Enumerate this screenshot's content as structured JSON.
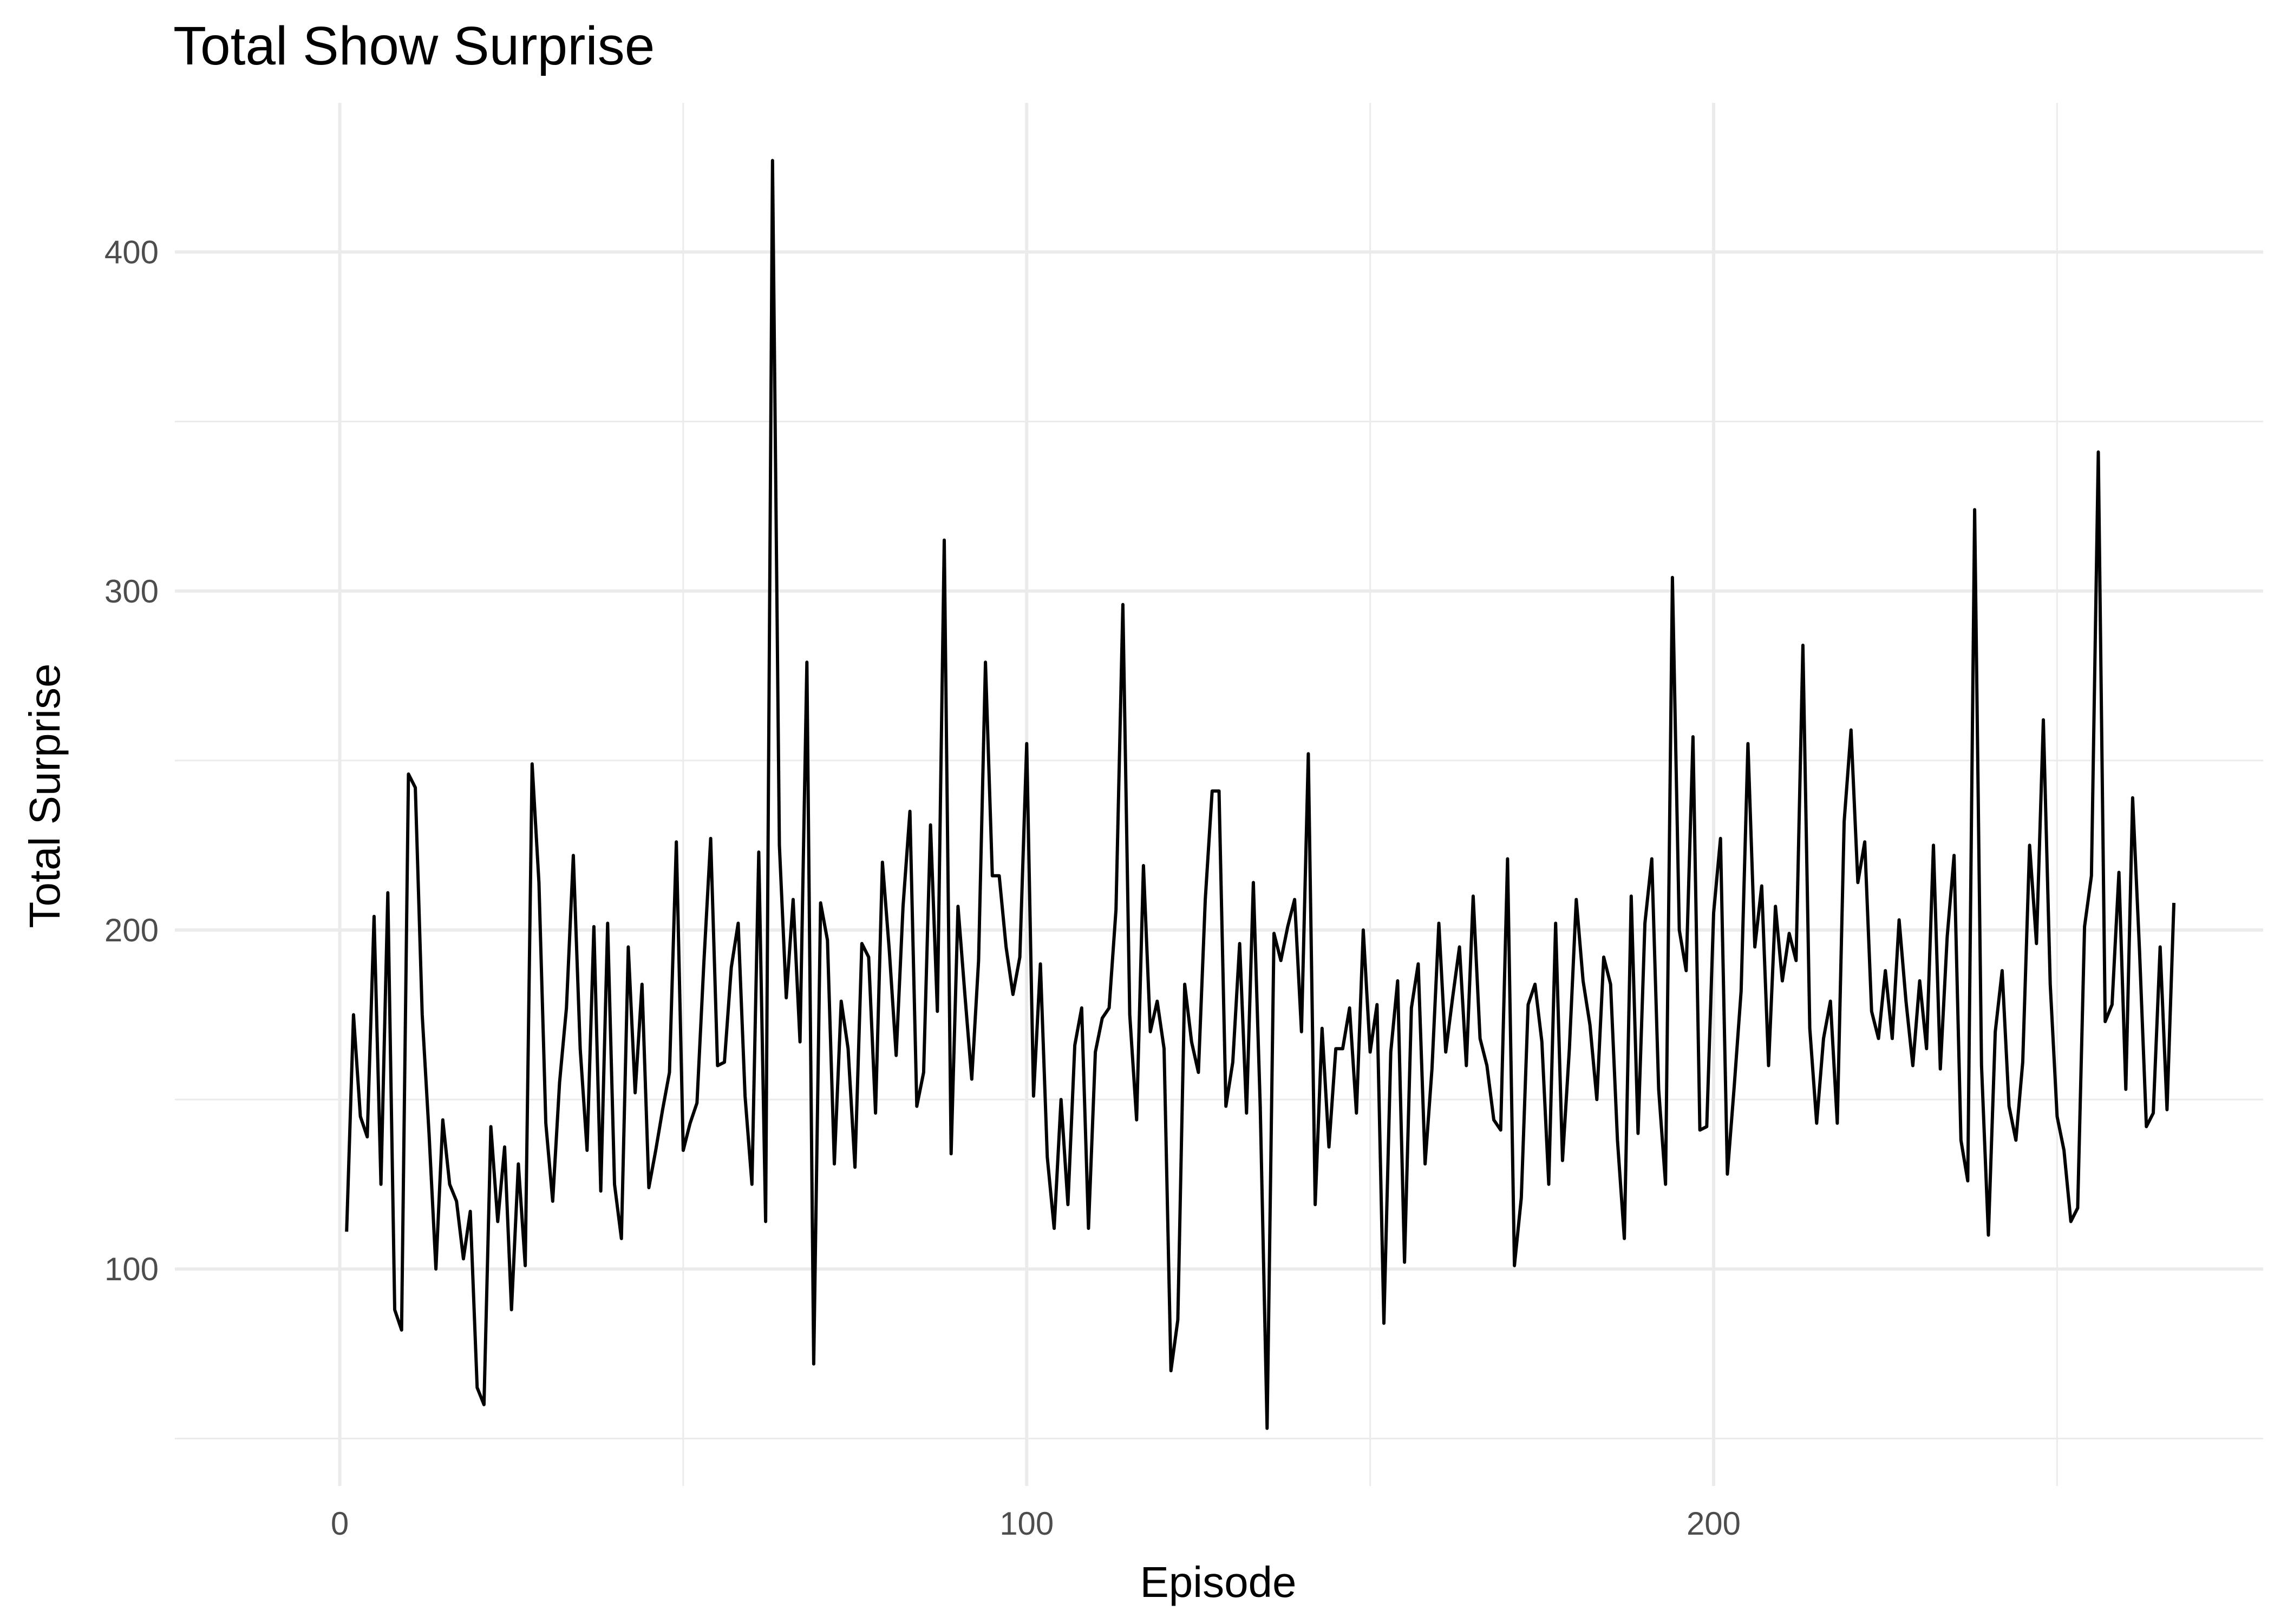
{
  "chart_data": {
    "type": "line",
    "title": "Total Show Surprise",
    "xlabel": "Episode",
    "ylabel": "Total Surprise",
    "xlim": [
      -24,
      280
    ],
    "ylim": [
      36,
      444
    ],
    "x_ticks": [
      0,
      100,
      200
    ],
    "x_tick_labels": [
      "0",
      "100",
      "200"
    ],
    "x_minor_ticks": [
      50,
      150,
      250
    ],
    "y_ticks": [
      100,
      200,
      300,
      400
    ],
    "y_tick_labels": [
      "100",
      "200",
      "300",
      "400"
    ],
    "y_minor_ticks": [
      50,
      150,
      250,
      350
    ],
    "grid": true,
    "legend": "none",
    "line_color": "#000000",
    "x_start": 1,
    "values": [
      111,
      175,
      145,
      139,
      204,
      125,
      211,
      88,
      82,
      246,
      242,
      175,
      140,
      100,
      144,
      125,
      120,
      103,
      117,
      65,
      60,
      142,
      114,
      136,
      88,
      131,
      101,
      249,
      214,
      143,
      120,
      155,
      177,
      222,
      165,
      135,
      201,
      123,
      202,
      125,
      109,
      195,
      152,
      184,
      124,
      135,
      147,
      158,
      226,
      135,
      143,
      149,
      190,
      227,
      160,
      161,
      189,
      202,
      151,
      125,
      223,
      114,
      427,
      225,
      180,
      209,
      167,
      279,
      72,
      208,
      197,
      131,
      179,
      165,
      130,
      196,
      192,
      146,
      220,
      194,
      163,
      207,
      235,
      148,
      158,
      231,
      176,
      315,
      134,
      207,
      181,
      156,
      191,
      279,
      216,
      216,
      195,
      181,
      192,
      255,
      151,
      190,
      133,
      112,
      150,
      119,
      166,
      177,
      112,
      164,
      174,
      177,
      206,
      296,
      175,
      144,
      219,
      170,
      179,
      165,
      70,
      85,
      184,
      167,
      158,
      209,
      241,
      241,
      148,
      161,
      196,
      146,
      214,
      148,
      53,
      199,
      191,
      201,
      209,
      170,
      252,
      119,
      171,
      136,
      165,
      165,
      177,
      146,
      200,
      164,
      178,
      84,
      164,
      185,
      102,
      177,
      190,
      131,
      159,
      202,
      164,
      180,
      195,
      160,
      210,
      168,
      160,
      144,
      141,
      221,
      101,
      121,
      178,
      184,
      167,
      125,
      202,
      132,
      165,
      209,
      185,
      172,
      150,
      192,
      184,
      138,
      109,
      210,
      140,
      202,
      221,
      153,
      125,
      304,
      200,
      188,
      257,
      141,
      142,
      205,
      227,
      128,
      154,
      182,
      255,
      195,
      213,
      160,
      207,
      185,
      199,
      191,
      284,
      171,
      143,
      168,
      179,
      143,
      232,
      259,
      214,
      226,
      176,
      168,
      188,
      168,
      203,
      179,
      160,
      185,
      165,
      225,
      159,
      198,
      222,
      138,
      126,
      324,
      160,
      110,
      170,
      188,
      148,
      138,
      161,
      225,
      196,
      262,
      184,
      145,
      135,
      114,
      118,
      201,
      216,
      341,
      173,
      178,
      217,
      153,
      239,
      194,
      142,
      146,
      195,
      147,
      208
    ]
  }
}
